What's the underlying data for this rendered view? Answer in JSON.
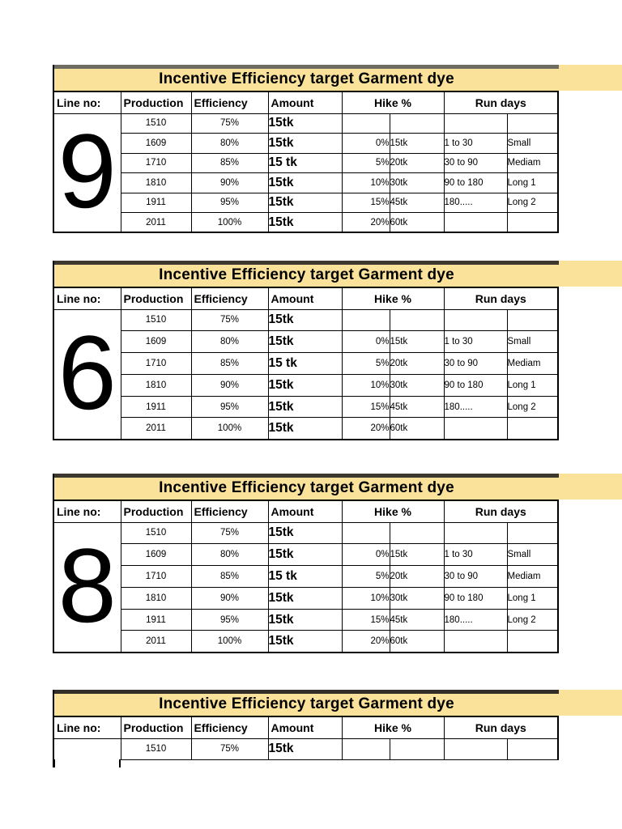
{
  "banner": {
    "title": "Incentive Efficiency target Garment dye",
    "bg_color": "#fbe29b",
    "strip_colors": [
      "#6f6d62",
      "#3c382f",
      "#3c382f",
      "#332f28"
    ]
  },
  "table_template": {
    "headers": {
      "line_no": "Line no:",
      "production": "Production",
      "efficiency": "Efficiency",
      "amount": "Amount",
      "hike": "Hike %",
      "run_days": "Run days"
    },
    "rows": [
      {
        "production": "1510",
        "efficiency": "75%",
        "amount": "15tk",
        "hike_pct": "",
        "hike_amt": "",
        "run_range": "",
        "run_label": ""
      },
      {
        "production": "1609",
        "efficiency": "80%",
        "amount": "15tk",
        "hike_pct": "0%",
        "hike_amt": "15tk",
        "run_range": "1 to 30",
        "run_label": "Small"
      },
      {
        "production": "1710",
        "efficiency": "85%",
        "amount": "15 tk",
        "hike_pct": "5%",
        "hike_amt": "20tk",
        "run_range": "30 to 90",
        "run_label": "Mediam"
      },
      {
        "production": "1810",
        "efficiency": "90%",
        "amount": "15tk",
        "hike_pct": "10%",
        "hike_amt": "30tk",
        "run_range": "90 to 180",
        "run_label": "Long 1"
      },
      {
        "production": "1911",
        "efficiency": "95%",
        "amount": "15tk",
        "hike_pct": "15%",
        "hike_amt": "45tk",
        "run_range": "180.....",
        "run_label": "Long 2"
      },
      {
        "production": "2011",
        "efficiency": "100%",
        "amount": "15tk",
        "hike_pct": "20%",
        "hike_amt": "60tk",
        "run_range": "",
        "run_label": ""
      }
    ]
  },
  "tables": [
    {
      "line_no": "9",
      "truncated": false
    },
    {
      "line_no": "6",
      "truncated": false
    },
    {
      "line_no": "8",
      "truncated": false
    },
    {
      "line_no": "",
      "truncated": true
    }
  ],
  "colors": {
    "border": "#000000",
    "text": "#000000",
    "page_bg": "#ffffff"
  }
}
